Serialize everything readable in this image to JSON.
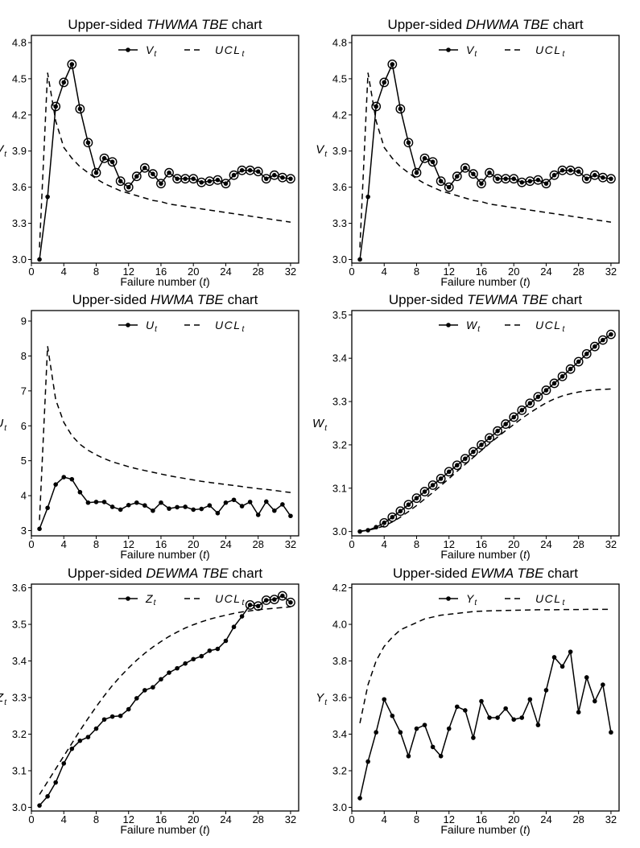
{
  "figure_colors": {
    "line": "#000000",
    "background": "#ffffff"
  },
  "chart_data": [
    {
      "type": "line",
      "title_prefix": "Upper-sided ",
      "title_emph": "THWMA TBE",
      "title_suffix": " chart",
      "xlabel_prefix": "Failure number (",
      "xlabel_var": "t",
      "xlabel_suffix": ")",
      "ylabel_main": "V",
      "ylabel_sub": "t",
      "legend": {
        "stat_main": "V",
        "stat_sub": "t",
        "ucl_main": "UCL",
        "ucl_sub": "t",
        "position": "top-center"
      },
      "xlim": [
        0,
        33
      ],
      "ylim": [
        2.97,
        4.86
      ],
      "xticks": [
        0,
        4,
        8,
        12,
        16,
        20,
        24,
        28,
        32
      ],
      "yticks": [
        3.0,
        3.3,
        3.6,
        3.9,
        4.2,
        4.5,
        4.8
      ],
      "ytick_labels": [
        "3.0",
        "3.3",
        "3.6",
        "3.9",
        "4.2",
        "4.5",
        "4.8"
      ],
      "x": [
        1,
        2,
        3,
        4,
        5,
        6,
        7,
        8,
        9,
        10,
        11,
        12,
        13,
        14,
        15,
        16,
        17,
        18,
        19,
        20,
        21,
        22,
        23,
        24,
        25,
        26,
        27,
        28,
        29,
        30,
        31,
        32
      ],
      "series": [
        {
          "name": "V_t",
          "style": "solid-dots",
          "values": [
            3.0,
            3.52,
            4.27,
            4.47,
            4.62,
            4.25,
            3.97,
            3.72,
            3.84,
            3.81,
            3.65,
            3.6,
            3.69,
            3.76,
            3.71,
            3.63,
            3.72,
            3.67,
            3.67,
            3.67,
            3.64,
            3.65,
            3.66,
            3.63,
            3.7,
            3.74,
            3.74,
            3.73,
            3.67,
            3.7,
            3.68,
            3.67
          ]
        },
        {
          "name": "UCL_t",
          "style": "dashed",
          "values": [
            3.1,
            4.55,
            4.15,
            3.93,
            3.84,
            3.77,
            3.72,
            3.67,
            3.63,
            3.6,
            3.57,
            3.55,
            3.53,
            3.51,
            3.49,
            3.48,
            3.46,
            3.45,
            3.44,
            3.43,
            3.42,
            3.41,
            3.4,
            3.39,
            3.38,
            3.37,
            3.36,
            3.35,
            3.34,
            3.33,
            3.32,
            3.31
          ]
        }
      ],
      "signals": [
        3,
        4,
        5,
        6,
        7,
        8,
        9,
        10,
        11,
        12,
        13,
        14,
        15,
        16,
        17,
        18,
        19,
        20,
        21,
        22,
        23,
        24,
        25,
        26,
        27,
        28,
        29,
        30,
        31,
        32
      ]
    },
    {
      "type": "line",
      "title_prefix": "Upper-sided ",
      "title_emph": "DHWMA TBE",
      "title_suffix": " chart",
      "xlabel_prefix": "Failure number (",
      "xlabel_var": "t",
      "xlabel_suffix": ")",
      "ylabel_main": "V",
      "ylabel_sub": "t",
      "legend": {
        "stat_main": "V",
        "stat_sub": "t",
        "ucl_main": "UCL",
        "ucl_sub": "t",
        "position": "top-center"
      },
      "xlim": [
        0,
        33
      ],
      "ylim": [
        2.97,
        4.86
      ],
      "xticks": [
        0,
        4,
        8,
        12,
        16,
        20,
        24,
        28,
        32
      ],
      "yticks": [
        3.0,
        3.3,
        3.6,
        3.9,
        4.2,
        4.5,
        4.8
      ],
      "ytick_labels": [
        "3.0",
        "3.3",
        "3.6",
        "3.9",
        "4.2",
        "4.5",
        "4.8"
      ],
      "x": [
        1,
        2,
        3,
        4,
        5,
        6,
        7,
        8,
        9,
        10,
        11,
        12,
        13,
        14,
        15,
        16,
        17,
        18,
        19,
        20,
        21,
        22,
        23,
        24,
        25,
        26,
        27,
        28,
        29,
        30,
        31,
        32
      ],
      "series": [
        {
          "name": "V_t",
          "style": "solid-dots",
          "values": [
            3.0,
            3.52,
            4.27,
            4.47,
            4.62,
            4.25,
            3.97,
            3.72,
            3.84,
            3.81,
            3.65,
            3.6,
            3.69,
            3.76,
            3.71,
            3.63,
            3.72,
            3.67,
            3.67,
            3.67,
            3.64,
            3.65,
            3.66,
            3.63,
            3.7,
            3.74,
            3.74,
            3.73,
            3.67,
            3.7,
            3.68,
            3.67
          ]
        },
        {
          "name": "UCL_t",
          "style": "dashed",
          "values": [
            3.1,
            4.55,
            4.15,
            3.93,
            3.84,
            3.77,
            3.72,
            3.67,
            3.63,
            3.6,
            3.57,
            3.55,
            3.53,
            3.51,
            3.49,
            3.48,
            3.46,
            3.45,
            3.44,
            3.43,
            3.42,
            3.41,
            3.4,
            3.39,
            3.38,
            3.37,
            3.36,
            3.35,
            3.34,
            3.33,
            3.32,
            3.31
          ]
        }
      ],
      "signals": [
        3,
        4,
        5,
        6,
        7,
        8,
        9,
        10,
        11,
        12,
        13,
        14,
        15,
        16,
        17,
        18,
        19,
        20,
        21,
        22,
        23,
        24,
        25,
        26,
        27,
        28,
        29,
        30,
        31,
        32
      ]
    },
    {
      "type": "line",
      "title_prefix": "Upper-sided ",
      "title_emph": "HWMA TBE",
      "title_suffix": " chart",
      "xlabel_prefix": "Failure number (",
      "xlabel_var": "t",
      "xlabel_suffix": ")",
      "ylabel_main": "U",
      "ylabel_sub": "t",
      "legend": {
        "stat_main": "U",
        "stat_sub": "t",
        "ucl_main": "UCL",
        "ucl_sub": "t",
        "position": "top-center"
      },
      "xlim": [
        0,
        33
      ],
      "ylim": [
        2.85,
        9.3
      ],
      "xticks": [
        0,
        4,
        8,
        12,
        16,
        20,
        24,
        28,
        32
      ],
      "yticks": [
        3,
        4,
        5,
        6,
        7,
        8,
        9
      ],
      "ytick_labels": [
        "3",
        "4",
        "5",
        "6",
        "7",
        "8",
        "9"
      ],
      "x": [
        1,
        2,
        3,
        4,
        5,
        6,
        7,
        8,
        9,
        10,
        11,
        12,
        13,
        14,
        15,
        16,
        17,
        18,
        19,
        20,
        21,
        22,
        23,
        24,
        25,
        26,
        27,
        28,
        29,
        30,
        31,
        32
      ],
      "series": [
        {
          "name": "U_t",
          "style": "solid-dots",
          "values": [
            3.05,
            3.65,
            4.32,
            4.53,
            4.47,
            4.1,
            3.8,
            3.82,
            3.82,
            3.68,
            3.6,
            3.73,
            3.8,
            3.72,
            3.57,
            3.8,
            3.63,
            3.67,
            3.68,
            3.6,
            3.62,
            3.72,
            3.5,
            3.8,
            3.88,
            3.7,
            3.82,
            3.45,
            3.83,
            3.57,
            3.75,
            3.42
          ]
        },
        {
          "name": "UCL_t",
          "style": "dashed",
          "values": [
            3.3,
            8.28,
            6.75,
            6.1,
            5.72,
            5.47,
            5.3,
            5.17,
            5.06,
            4.97,
            4.9,
            4.83,
            4.77,
            4.72,
            4.67,
            4.62,
            4.57,
            4.53,
            4.49,
            4.45,
            4.41,
            4.38,
            4.35,
            4.32,
            4.29,
            4.26,
            4.23,
            4.2,
            4.18,
            4.15,
            4.12,
            4.09
          ]
        }
      ],
      "signals": []
    },
    {
      "type": "line",
      "title_prefix": "Upper-sided ",
      "title_emph": "TEWMA TBE",
      "title_suffix": " chart",
      "xlabel_prefix": "Failure number (",
      "xlabel_var": "t",
      "xlabel_suffix": ")",
      "ylabel_main": "W",
      "ylabel_sub": "t",
      "legend": {
        "stat_main": "W",
        "stat_sub": "t",
        "ucl_main": "UCL",
        "ucl_sub": "t",
        "position": "top-center"
      },
      "xlim": [
        0,
        33
      ],
      "ylim": [
        2.99,
        3.51
      ],
      "xticks": [
        0,
        4,
        8,
        12,
        16,
        20,
        24,
        28,
        32
      ],
      "yticks": [
        3.0,
        3.1,
        3.2,
        3.3,
        3.4,
        3.5
      ],
      "ytick_labels": [
        "3.0",
        "3.1",
        "3.2",
        "3.3",
        "3.4",
        "3.5"
      ],
      "x": [
        1,
        2,
        3,
        4,
        5,
        6,
        7,
        8,
        9,
        10,
        11,
        12,
        13,
        14,
        15,
        16,
        17,
        18,
        19,
        20,
        21,
        22,
        23,
        24,
        25,
        26,
        27,
        28,
        29,
        30,
        31,
        32
      ],
      "series": [
        {
          "name": "W_t",
          "style": "solid-dots",
          "values": [
            3.0,
            3.003,
            3.01,
            3.02,
            3.033,
            3.047,
            3.062,
            3.077,
            3.092,
            3.107,
            3.122,
            3.138,
            3.153,
            3.168,
            3.184,
            3.2,
            3.216,
            3.232,
            3.248,
            3.264,
            3.28,
            3.296,
            3.311,
            3.326,
            3.342,
            3.358,
            3.375,
            3.392,
            3.41,
            3.427,
            3.442,
            3.455
          ]
        },
        {
          "name": "UCL_t",
          "style": "dashed",
          "values": [
            3.001,
            3.003,
            3.007,
            3.013,
            3.022,
            3.033,
            3.046,
            3.06,
            3.075,
            3.09,
            3.106,
            3.122,
            3.139,
            3.155,
            3.171,
            3.187,
            3.203,
            3.218,
            3.233,
            3.247,
            3.261,
            3.274,
            3.286,
            3.297,
            3.306,
            3.313,
            3.318,
            3.322,
            3.325,
            3.327,
            3.328,
            3.329
          ]
        }
      ],
      "signals": [
        4,
        5,
        6,
        7,
        8,
        9,
        10,
        11,
        12,
        13,
        14,
        15,
        16,
        17,
        18,
        19,
        20,
        21,
        22,
        23,
        24,
        25,
        26,
        27,
        28,
        29,
        30,
        31,
        32
      ]
    },
    {
      "type": "line",
      "title_prefix": "Upper-sided ",
      "title_emph": "DEWMA TBE",
      "title_suffix": " chart",
      "xlabel_prefix": "Failure number (",
      "xlabel_var": "t",
      "xlabel_suffix": ")",
      "ylabel_main": "Z",
      "ylabel_sub": "t",
      "legend": {
        "stat_main": "Z",
        "stat_sub": "t",
        "ucl_main": "UCL",
        "ucl_sub": "t",
        "position": "top-center"
      },
      "xlim": [
        0,
        33
      ],
      "ylim": [
        2.99,
        3.61
      ],
      "xticks": [
        0,
        4,
        8,
        12,
        16,
        20,
        24,
        28,
        32
      ],
      "yticks": [
        3.0,
        3.1,
        3.2,
        3.3,
        3.4,
        3.5,
        3.6
      ],
      "ytick_labels": [
        "3.0",
        "3.1",
        "3.2",
        "3.3",
        "3.4",
        "3.5",
        "3.6"
      ],
      "x": [
        1,
        2,
        3,
        4,
        5,
        6,
        7,
        8,
        9,
        10,
        11,
        12,
        13,
        14,
        15,
        16,
        17,
        18,
        19,
        20,
        21,
        22,
        23,
        24,
        25,
        26,
        27,
        28,
        29,
        30,
        31,
        32
      ],
      "series": [
        {
          "name": "Z_t",
          "style": "solid-dots",
          "values": [
            3.005,
            3.03,
            3.068,
            3.12,
            3.16,
            3.182,
            3.192,
            3.215,
            3.24,
            3.248,
            3.25,
            3.268,
            3.298,
            3.32,
            3.328,
            3.35,
            3.368,
            3.38,
            3.393,
            3.405,
            3.413,
            3.428,
            3.433,
            3.455,
            3.493,
            3.522,
            3.553,
            3.55,
            3.566,
            3.568,
            3.578,
            3.56
          ]
        },
        {
          "name": "UCL_t",
          "style": "dashed",
          "values": [
            3.035,
            3.07,
            3.105,
            3.14,
            3.175,
            3.21,
            3.243,
            3.275,
            3.305,
            3.333,
            3.358,
            3.381,
            3.402,
            3.421,
            3.438,
            3.453,
            3.467,
            3.479,
            3.49,
            3.499,
            3.507,
            3.514,
            3.52,
            3.525,
            3.53,
            3.534,
            3.537,
            3.54,
            3.542,
            3.544,
            3.546,
            3.548
          ]
        }
      ],
      "signals": [
        27,
        28,
        29,
        30,
        31,
        32
      ]
    },
    {
      "type": "line",
      "title_prefix": "Upper-sided ",
      "title_emph": "EWMA TBE",
      "title_suffix": " chart",
      "xlabel_prefix": "Failure number (",
      "xlabel_var": "t",
      "xlabel_suffix": ")",
      "ylabel_main": "Y",
      "ylabel_sub": "t",
      "legend": {
        "stat_main": "Y",
        "stat_sub": "t",
        "ucl_main": "UCL",
        "ucl_sub": "t",
        "position": "top-center"
      },
      "xlim": [
        0,
        33
      ],
      "ylim": [
        2.98,
        4.22
      ],
      "xticks": [
        0,
        4,
        8,
        12,
        16,
        20,
        24,
        28,
        32
      ],
      "yticks": [
        3.0,
        3.2,
        3.4,
        3.6,
        3.8,
        4.0,
        4.2
      ],
      "ytick_labels": [
        "3.0",
        "3.2",
        "3.4",
        "3.6",
        "3.8",
        "4.0",
        "4.2"
      ],
      "x": [
        1,
        2,
        3,
        4,
        5,
        6,
        7,
        8,
        9,
        10,
        11,
        12,
        13,
        14,
        15,
        16,
        17,
        18,
        19,
        20,
        21,
        22,
        23,
        24,
        25,
        26,
        27,
        28,
        29,
        30,
        31,
        32
      ],
      "series": [
        {
          "name": "Y_t",
          "style": "solid-dots",
          "values": [
            3.05,
            3.25,
            3.41,
            3.59,
            3.5,
            3.41,
            3.28,
            3.43,
            3.45,
            3.33,
            3.28,
            3.43,
            3.55,
            3.53,
            3.38,
            3.58,
            3.49,
            3.49,
            3.54,
            3.48,
            3.49,
            3.59,
            3.45,
            3.64,
            3.82,
            3.77,
            3.85,
            3.52,
            3.71,
            3.58,
            3.67,
            3.41
          ]
        },
        {
          "name": "UCL_t",
          "style": "dashed",
          "values": [
            3.46,
            3.67,
            3.8,
            3.88,
            3.93,
            3.97,
            3.99,
            4.01,
            4.03,
            4.04,
            4.05,
            4.055,
            4.06,
            4.065,
            4.07,
            4.072,
            4.074,
            4.075,
            4.076,
            4.077,
            4.078,
            4.079,
            4.08,
            4.08,
            4.08,
            4.081,
            4.081,
            4.081,
            4.082,
            4.082,
            4.082,
            4.082
          ]
        }
      ],
      "signals": []
    }
  ]
}
